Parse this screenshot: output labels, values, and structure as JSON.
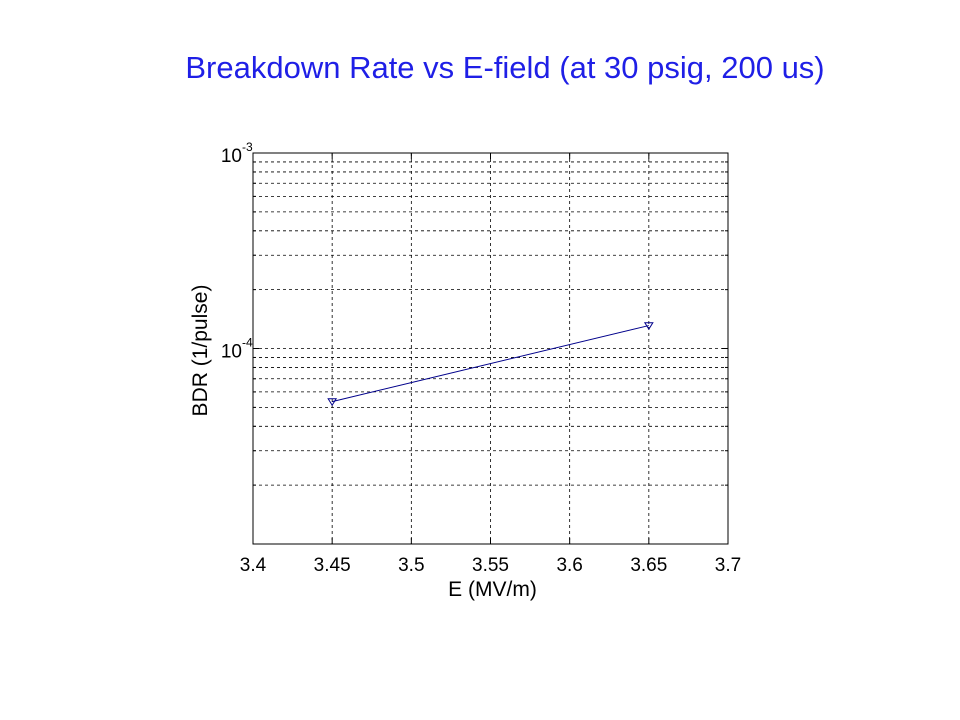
{
  "slide": {
    "title": "Breakdown Rate vs E-field (at 30 psig, 200 us)"
  },
  "chart_data": {
    "type": "line",
    "title": "Breakdown Rate vs E-field (at 30 psig, 200 us)",
    "xlabel": "E (MV/m)",
    "ylabel": "BDR (1/pulse)",
    "x_scale": "linear",
    "y_scale": "log",
    "xlim": [
      3.4,
      3.7
    ],
    "ylim": [
      1e-05,
      0.001
    ],
    "x_ticks": [
      3.4,
      3.45,
      3.5,
      3.55,
      3.6,
      3.65,
      3.7
    ],
    "x_tick_labels": [
      "3.4",
      "3.45",
      "3.5",
      "3.55",
      "3.6",
      "3.65",
      "3.7"
    ],
    "y_tick_labels": [
      {
        "base": "10",
        "exp": "-3",
        "value": 0.001
      },
      {
        "base": "10",
        "exp": "-4",
        "value": 0.0001
      }
    ],
    "grid": true,
    "series": [
      {
        "x": [
          3.45,
          3.65
        ],
        "y": [
          5.35e-05,
          0.000131
        ],
        "color": "#00008b",
        "marker": "triangle-down"
      }
    ]
  }
}
